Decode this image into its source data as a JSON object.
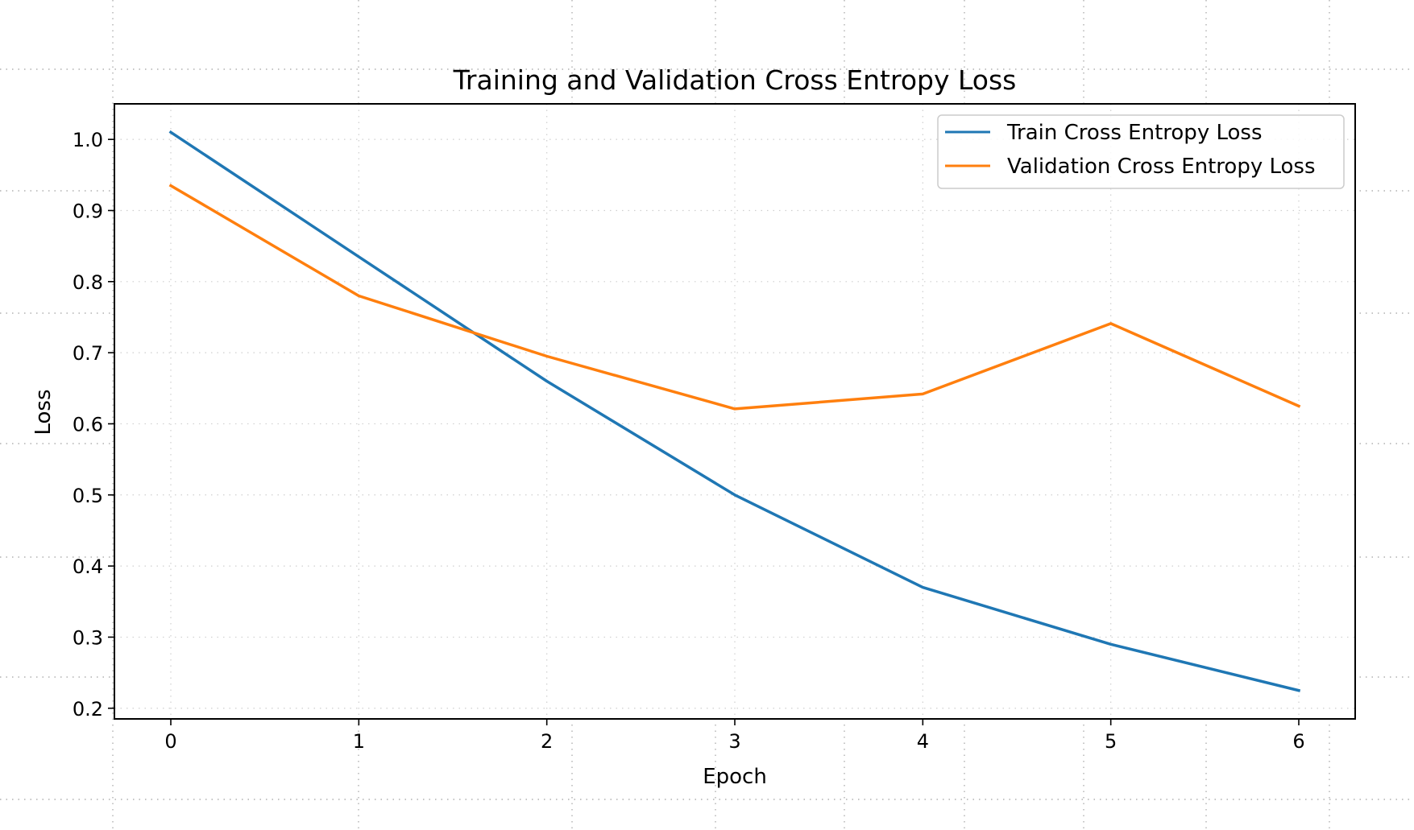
{
  "chart_data": {
    "type": "line",
    "title": "Training and Validation Cross Entropy Loss",
    "xlabel": "Epoch",
    "ylabel": "Loss",
    "x": [
      0,
      1,
      2,
      3,
      4,
      5,
      6
    ],
    "xticks": [
      "0",
      "1",
      "2",
      "3",
      "4",
      "5",
      "6"
    ],
    "yticks": [
      "0.2",
      "0.3",
      "0.4",
      "0.5",
      "0.6",
      "0.7",
      "0.8",
      "0.9",
      "1.0"
    ],
    "xlim": [
      -0.3,
      6.3
    ],
    "ylim": [
      0.185,
      1.05
    ],
    "grid": true,
    "legend_position": "upper right",
    "series": [
      {
        "name": "Train Cross Entropy Loss",
        "color": "#1f77b4",
        "values": [
          1.01,
          0.835,
          0.66,
          0.5,
          0.37,
          0.29,
          0.225
        ]
      },
      {
        "name": "Validation Cross Entropy Loss",
        "color": "#ff7f0e",
        "values": [
          0.935,
          0.78,
          0.695,
          0.621,
          0.642,
          0.741,
          0.625
        ]
      }
    ]
  }
}
